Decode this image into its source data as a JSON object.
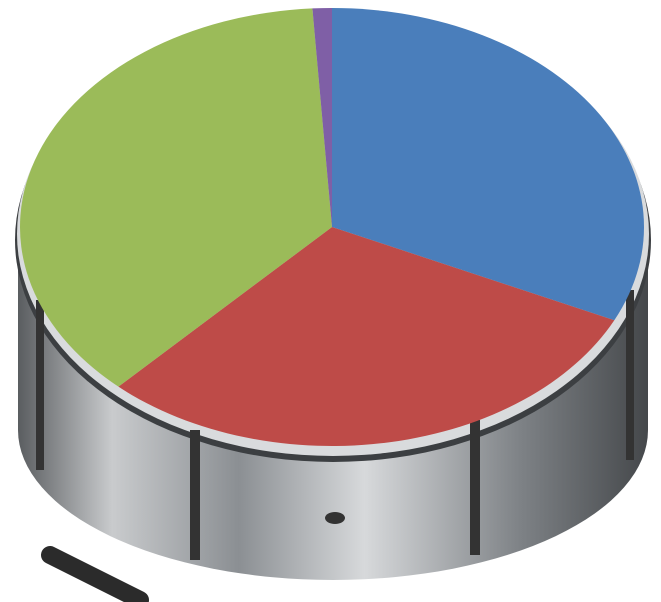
{
  "chart_data": {
    "type": "pie",
    "values": [
      32,
      30,
      37,
      1
    ],
    "colors": [
      "#4a7ebb",
      "#be4b48",
      "#9bbb59",
      "#7f5fa6"
    ],
    "start_angle": 0,
    "direction": "clockwise"
  }
}
